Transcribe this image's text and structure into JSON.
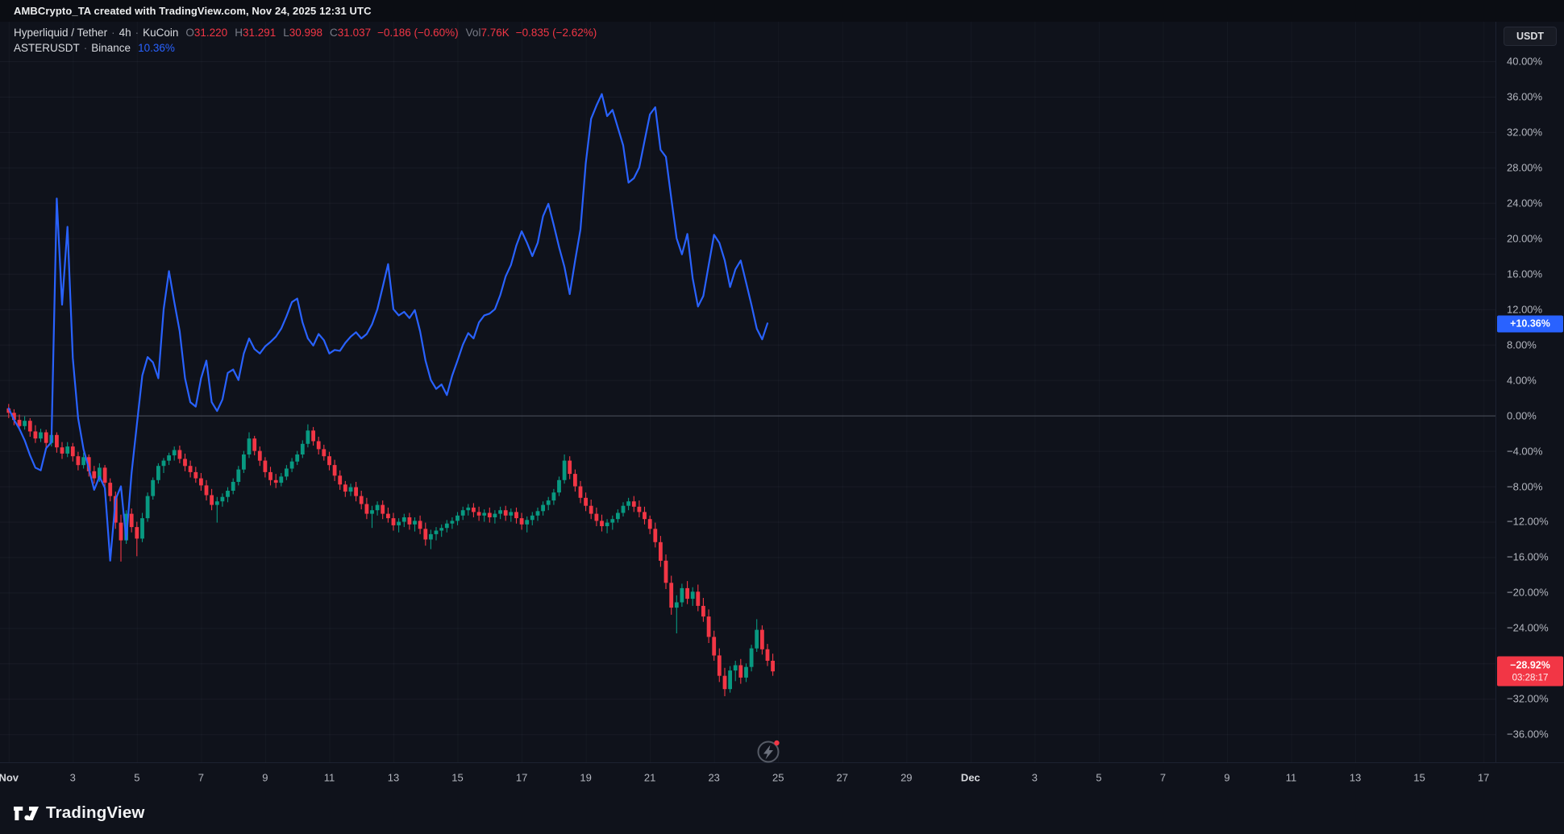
{
  "attribution": {
    "text": "AMBCrypto_TA created with TradingView.com, Nov 24, 2025 12:31 UTC"
  },
  "legend": {
    "main": {
      "title": "Hyperliquid / Tether",
      "sep": "·",
      "interval": "4h",
      "exchange": "KuCoin",
      "o_label": "O",
      "o": "31.220",
      "h_label": "H",
      "h": "31.291",
      "l_label": "L",
      "l": "30.998",
      "c_label": "C",
      "c": "31.037",
      "change": "−0.186 (−0.60%)",
      "vol_label": "Vol",
      "vol": "7.76K",
      "vol_change": "−0.835 (−2.62%)"
    },
    "compare": {
      "title": "ASTERUSDT",
      "sep": "·",
      "exchange": "Binance",
      "pct": "10.36%"
    }
  },
  "right_axis": {
    "currency_button": "USDT",
    "pcts": [
      40,
      36,
      32,
      28,
      24,
      20,
      16,
      12,
      8,
      4,
      0,
      -4,
      -8,
      -12,
      -16,
      -20,
      -24,
      -28,
      -32,
      -36
    ],
    "labels": [
      "40.00%",
      "36.00%",
      "32.00%",
      "28.00%",
      "24.00%",
      "20.00%",
      "16.00%",
      "12.00%",
      "8.00%",
      "4.00%",
      "0.00%",
      "−4.00%",
      "−8.00%",
      "−12.00%",
      "−16.00%",
      "−20.00%",
      "−24.00%",
      "−28.00%",
      "−32.00%",
      "−36.00%"
    ],
    "aster_tag": {
      "label": "+10.36%",
      "pct": 10.36,
      "color": "#2962ff"
    },
    "hype_tag": {
      "label": "−28.92%",
      "countdown": "03:28:17",
      "pct": -28.92,
      "color": "#f23645"
    }
  },
  "logo": {
    "text": "TradingView"
  },
  "chart_data": {
    "type": "candlestick",
    "title": "Hyperliquid / Tether 4h (KuCoin) percent change with ASTERUSDT (Binance) comparison line",
    "y_format": "percent",
    "ylim": [
      -38.5,
      42
    ],
    "grid": true,
    "zero_line": 0,
    "x_axis": {
      "unit": "day of Nov 2025 (fractional, values > 30 are Dec)",
      "tick_days": [
        1,
        3,
        5,
        7,
        9,
        11,
        13,
        15,
        17,
        19,
        21,
        23,
        25,
        27,
        29,
        31,
        33,
        35,
        37,
        39,
        41,
        43,
        45,
        47
      ],
      "tick_labels": [
        "Nov",
        "3",
        "5",
        "7",
        "9",
        "11",
        "13",
        "15",
        "17",
        "19",
        "21",
        "23",
        "25",
        "27",
        "29",
        "Dec",
        "3",
        "5",
        "7",
        "9",
        "11",
        "13",
        "15",
        "17"
      ]
    },
    "last_values": {
      "hype_pct": -28.92,
      "aster_pct": 10.36
    },
    "ohlc_readout": {
      "open": 31.22,
      "high": 31.291,
      "low": 30.998,
      "close": 31.037,
      "change": -0.186,
      "change_pct": -0.6,
      "volume": "7.76K",
      "vol_change": -0.835,
      "vol_change_pct": -2.62
    },
    "series": [
      {
        "kind": "candlestick",
        "name": "HYPEUSDT % change",
        "up_color": "#089981",
        "down_color": "#f23645",
        "start_day": 1.0,
        "step_days": 0.1666667,
        "ohlc": [
          [
            0.8,
            1.3,
            -0.3,
            0.3
          ],
          [
            0.3,
            0.7,
            -1.1,
            -0.5
          ],
          [
            -0.5,
            0.1,
            -1.7,
            -1.2
          ],
          [
            -1.2,
            -0.1,
            -1.6,
            -0.6
          ],
          [
            -0.6,
            -0.3,
            -2.4,
            -1.8
          ],
          [
            -1.8,
            -1.1,
            -3.1,
            -2.6
          ],
          [
            -2.6,
            -1.5,
            -3.0,
            -1.9
          ],
          [
            -1.9,
            -1.6,
            -3.7,
            -3.1
          ],
          [
            -3.1,
            -1.7,
            -3.5,
            -2.2
          ],
          [
            -2.2,
            -1.9,
            -4.2,
            -3.6
          ],
          [
            -3.6,
            -3.0,
            -4.9,
            -4.3
          ],
          [
            -4.3,
            -3.0,
            -4.7,
            -3.5
          ],
          [
            -3.5,
            -3.1,
            -5.2,
            -4.6
          ],
          [
            -4.6,
            -4.1,
            -6.2,
            -5.6
          ],
          [
            -5.6,
            -4.2,
            -6.0,
            -4.7
          ],
          [
            -4.7,
            -4.4,
            -6.9,
            -6.3
          ],
          [
            -6.3,
            -5.7,
            -7.7,
            -7.1
          ],
          [
            -7.1,
            -5.4,
            -7.5,
            -5.9
          ],
          [
            -5.9,
            -5.6,
            -8.2,
            -7.6
          ],
          [
            -7.6,
            -7.1,
            -9.7,
            -9.1
          ],
          [
            -9.1,
            -8.6,
            -12.8,
            -12.1
          ],
          [
            -12.1,
            -11.2,
            -16.5,
            -14.1
          ],
          [
            -14.1,
            -10.7,
            -14.5,
            -11.1
          ],
          [
            -11.1,
            -10.5,
            -13.2,
            -12.6
          ],
          [
            -12.6,
            -12.0,
            -15.9,
            -13.9
          ],
          [
            -13.9,
            -11.0,
            -14.3,
            -11.6
          ],
          [
            -11.6,
            -8.7,
            -12.0,
            -9.1
          ],
          [
            -9.1,
            -7.0,
            -9.5,
            -7.3
          ],
          [
            -7.3,
            -5.4,
            -7.7,
            -5.7
          ],
          [
            -5.7,
            -4.8,
            -6.5,
            -5.1
          ],
          [
            -5.1,
            -4.2,
            -5.6,
            -4.5
          ],
          [
            -4.5,
            -3.5,
            -5.1,
            -3.9
          ],
          [
            -3.9,
            -3.4,
            -5.4,
            -4.9
          ],
          [
            -4.9,
            -4.3,
            -6.3,
            -5.7
          ],
          [
            -5.7,
            -5.1,
            -7.0,
            -6.4
          ],
          [
            -6.4,
            -5.8,
            -7.6,
            -7.1
          ],
          [
            -7.1,
            -6.5,
            -8.5,
            -7.9
          ],
          [
            -7.9,
            -7.3,
            -9.6,
            -9.0
          ],
          [
            -9.0,
            -8.3,
            -10.7,
            -10.1
          ],
          [
            -10.1,
            -9.2,
            -12.1,
            -9.7
          ],
          [
            -9.7,
            -8.8,
            -10.3,
            -9.2
          ],
          [
            -9.2,
            -8.1,
            -9.8,
            -8.5
          ],
          [
            -8.5,
            -7.1,
            -8.9,
            -7.5
          ],
          [
            -7.5,
            -5.7,
            -7.9,
            -6.1
          ],
          [
            -6.1,
            -4.0,
            -6.5,
            -4.4
          ],
          [
            -4.4,
            -1.9,
            -4.8,
            -2.6
          ],
          [
            -2.6,
            -2.3,
            -4.5,
            -4.0
          ],
          [
            -4.0,
            -3.5,
            -5.7,
            -5.1
          ],
          [
            -5.1,
            -4.7,
            -7.0,
            -6.4
          ],
          [
            -6.4,
            -5.8,
            -7.9,
            -7.3
          ],
          [
            -7.3,
            -6.6,
            -8.2,
            -7.6
          ],
          [
            -7.6,
            -6.5,
            -8.0,
            -6.9
          ],
          [
            -6.9,
            -5.6,
            -7.3,
            -6.0
          ],
          [
            -6.0,
            -4.8,
            -6.4,
            -5.2
          ],
          [
            -5.2,
            -4.0,
            -5.6,
            -4.4
          ],
          [
            -4.4,
            -2.8,
            -4.8,
            -3.2
          ],
          [
            -3.2,
            -1.0,
            -3.6,
            -1.7
          ],
          [
            -1.7,
            -1.3,
            -3.4,
            -2.9
          ],
          [
            -2.9,
            -2.4,
            -4.4,
            -3.8
          ],
          [
            -3.8,
            -3.3,
            -5.1,
            -4.6
          ],
          [
            -4.6,
            -4.1,
            -6.2,
            -5.6
          ],
          [
            -5.6,
            -5.0,
            -7.4,
            -6.8
          ],
          [
            -6.8,
            -6.2,
            -8.4,
            -7.8
          ],
          [
            -7.8,
            -7.4,
            -9.2,
            -8.6
          ],
          [
            -8.6,
            -7.7,
            -9.1,
            -8.1
          ],
          [
            -8.1,
            -7.5,
            -9.7,
            -9.1
          ],
          [
            -9.1,
            -8.5,
            -10.6,
            -10.0
          ],
          [
            -10.0,
            -9.3,
            -11.7,
            -11.1
          ],
          [
            -11.1,
            -10.2,
            -12.7,
            -10.7
          ],
          [
            -10.7,
            -9.7,
            -11.3,
            -10.1
          ],
          [
            -10.1,
            -9.6,
            -11.7,
            -11.1
          ],
          [
            -11.1,
            -10.4,
            -12.1,
            -11.6
          ],
          [
            -11.6,
            -11.0,
            -13.0,
            -12.4
          ],
          [
            -12.4,
            -11.6,
            -13.2,
            -12.0
          ],
          [
            -12.0,
            -11.1,
            -12.6,
            -11.5
          ],
          [
            -11.5,
            -11.0,
            -12.9,
            -12.3
          ],
          [
            -12.3,
            -11.5,
            -13.1,
            -11.9
          ],
          [
            -11.9,
            -11.3,
            -13.4,
            -12.8
          ],
          [
            -12.8,
            -12.1,
            -14.7,
            -14.0
          ],
          [
            -14.0,
            -12.9,
            -15.1,
            -13.4
          ],
          [
            -13.4,
            -12.6,
            -14.1,
            -13.0
          ],
          [
            -13.0,
            -12.3,
            -13.7,
            -12.7
          ],
          [
            -12.7,
            -11.8,
            -13.2,
            -12.2
          ],
          [
            -12.2,
            -11.5,
            -12.8,
            -11.9
          ],
          [
            -11.9,
            -10.9,
            -12.4,
            -11.3
          ],
          [
            -11.3,
            -10.3,
            -11.8,
            -10.7
          ],
          [
            -10.7,
            -10.0,
            -11.3,
            -10.4
          ],
          [
            -10.4,
            -9.9,
            -11.5,
            -10.9
          ],
          [
            -10.9,
            -10.3,
            -11.9,
            -11.3
          ],
          [
            -11.3,
            -10.6,
            -12.0,
            -11.0
          ],
          [
            -11.0,
            -10.4,
            -12.1,
            -11.5
          ],
          [
            -11.5,
            -10.7,
            -12.2,
            -11.1
          ],
          [
            -11.1,
            -10.3,
            -11.7,
            -10.7
          ],
          [
            -10.7,
            -10.2,
            -11.9,
            -11.3
          ],
          [
            -11.3,
            -10.5,
            -12.0,
            -10.9
          ],
          [
            -10.9,
            -10.4,
            -12.2,
            -11.6
          ],
          [
            -11.6,
            -11.0,
            -12.9,
            -12.3
          ],
          [
            -12.3,
            -11.4,
            -13.2,
            -11.8
          ],
          [
            -11.8,
            -10.9,
            -12.4,
            -11.3
          ],
          [
            -11.3,
            -10.4,
            -11.9,
            -10.8
          ],
          [
            -10.8,
            -9.7,
            -11.3,
            -10.1
          ],
          [
            -10.1,
            -9.2,
            -10.7,
            -9.6
          ],
          [
            -9.6,
            -8.3,
            -10.1,
            -8.7
          ],
          [
            -8.7,
            -6.9,
            -9.1,
            -7.3
          ],
          [
            -7.3,
            -4.4,
            -7.7,
            -5.1
          ],
          [
            -5.1,
            -4.6,
            -7.2,
            -6.6
          ],
          [
            -6.6,
            -6.1,
            -8.6,
            -8.0
          ],
          [
            -8.0,
            -7.4,
            -9.9,
            -9.3
          ],
          [
            -9.3,
            -8.7,
            -10.8,
            -10.2
          ],
          [
            -10.2,
            -9.5,
            -11.7,
            -11.1
          ],
          [
            -11.1,
            -10.4,
            -12.5,
            -11.9
          ],
          [
            -11.9,
            -11.2,
            -13.1,
            -12.5
          ],
          [
            -12.5,
            -11.7,
            -13.3,
            -12.1
          ],
          [
            -12.1,
            -11.3,
            -12.9,
            -11.7
          ],
          [
            -11.7,
            -10.6,
            -12.1,
            -11.0
          ],
          [
            -11.0,
            -9.8,
            -11.4,
            -10.2
          ],
          [
            -10.2,
            -9.3,
            -10.7,
            -9.7
          ],
          [
            -9.7,
            -9.1,
            -10.9,
            -10.3
          ],
          [
            -10.3,
            -9.6,
            -11.5,
            -10.9
          ],
          [
            -10.9,
            -10.3,
            -12.3,
            -11.7
          ],
          [
            -11.7,
            -11.3,
            -13.4,
            -12.8
          ],
          [
            -12.8,
            -12.1,
            -14.9,
            -14.3
          ],
          [
            -14.3,
            -13.6,
            -17.1,
            -16.4
          ],
          [
            -16.4,
            -15.7,
            -19.6,
            -18.9
          ],
          [
            -18.9,
            -18.1,
            -22.5,
            -21.7
          ],
          [
            -21.7,
            -20.3,
            -24.6,
            -21.1
          ],
          [
            -21.1,
            -19.0,
            -21.6,
            -19.5
          ],
          [
            -19.5,
            -18.7,
            -21.3,
            -20.7
          ],
          [
            -20.7,
            -19.4,
            -21.5,
            -19.9
          ],
          [
            -19.9,
            -19.1,
            -22.1,
            -21.5
          ],
          [
            -21.5,
            -20.6,
            -23.3,
            -22.7
          ],
          [
            -22.7,
            -21.9,
            -25.7,
            -25.0
          ],
          [
            -25.0,
            -24.3,
            -27.7,
            -27.1
          ],
          [
            -27.1,
            -26.3,
            -30.1,
            -29.4
          ],
          [
            -29.4,
            -28.5,
            -31.7,
            -30.9
          ],
          [
            -30.9,
            -28.3,
            -31.3,
            -28.8
          ],
          [
            -28.8,
            -27.7,
            -30.0,
            -28.2
          ],
          [
            -28.2,
            -27.5,
            -30.3,
            -29.6
          ],
          [
            -29.6,
            -28.0,
            -30.1,
            -28.4
          ],
          [
            -28.4,
            -25.9,
            -28.9,
            -26.3
          ],
          [
            -26.3,
            -23.0,
            -26.7,
            -24.2
          ],
          [
            -24.2,
            -23.7,
            -27.0,
            -26.4
          ],
          [
            -26.4,
            -25.8,
            -28.3,
            -27.7
          ],
          [
            -27.7,
            -26.9,
            -29.4,
            -28.9
          ]
        ]
      },
      {
        "kind": "line",
        "name": "ASTERUSDT % change",
        "color": "#2962ff",
        "start_day": 1.0,
        "step_days": 0.1666667,
        "values": [
          0.8,
          -0.5,
          -1.5,
          -2.8,
          -4.5,
          -5.9,
          -6.2,
          -3.7,
          -3.0,
          24.5,
          12.5,
          21.3,
          6.5,
          -0.3,
          -3.8,
          -6.0,
          -8.4,
          -6.9,
          -8.2,
          -16.4,
          -9.5,
          -8.0,
          -14.0,
          -6.5,
          -1.0,
          4.5,
          6.6,
          6.0,
          4.2,
          12.0,
          16.3,
          12.8,
          9.5,
          4.2,
          1.5,
          1.0,
          4.2,
          6.2,
          1.5,
          0.5,
          1.8,
          4.8,
          5.2,
          4.0,
          7.0,
          8.7,
          7.5,
          7.0,
          7.8,
          8.3,
          8.9,
          9.8,
          11.2,
          12.8,
          13.2,
          10.5,
          8.7,
          7.9,
          9.2,
          8.5,
          7.0,
          7.4,
          7.3,
          8.2,
          8.9,
          9.4,
          8.7,
          9.2,
          10.3,
          12.0,
          14.5,
          17.1,
          12.0,
          11.3,
          11.7,
          11.0,
          11.9,
          9.5,
          6.2,
          4.0,
          3.0,
          3.5,
          2.3,
          4.5,
          6.2,
          8.0,
          9.3,
          8.7,
          10.5,
          11.3,
          11.5,
          12.0,
          13.6,
          15.7,
          17.0,
          19.2,
          20.8,
          19.5,
          18.0,
          19.5,
          22.5,
          23.9,
          21.5,
          19.0,
          16.8,
          13.7,
          17.5,
          21.0,
          28.5,
          33.5,
          35.0,
          36.3,
          33.8,
          34.5,
          32.5,
          30.5,
          26.3,
          26.8,
          28.0,
          31.0,
          34.0,
          34.8,
          30.0,
          29.2,
          24.5,
          20.0,
          18.2,
          20.5,
          15.5,
          12.3,
          13.5,
          17.0,
          20.4,
          19.5,
          17.5,
          14.5,
          16.5,
          17.5,
          15.0,
          12.5,
          9.8,
          8.6,
          10.4
        ]
      }
    ]
  }
}
